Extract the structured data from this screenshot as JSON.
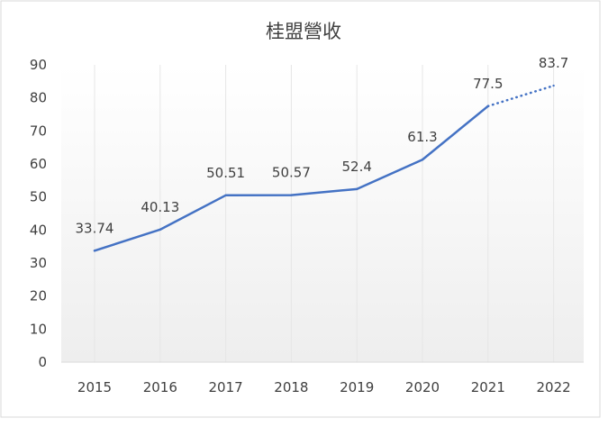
{
  "chart_data": {
    "type": "line",
    "title": "桂盟營收",
    "xlabel": "",
    "ylabel": "",
    "categories": [
      "2015",
      "2016",
      "2017",
      "2018",
      "2019",
      "2020",
      "2021",
      "2022"
    ],
    "ylim": [
      0,
      90
    ],
    "yticks": [
      0,
      10,
      20,
      30,
      40,
      50,
      60,
      70,
      80,
      90
    ],
    "series": [
      {
        "values": [
          33.74,
          40.13,
          50.51,
          50.57,
          52.4,
          61.3,
          77.5,
          83.7
        ],
        "data_labels": [
          "33.74",
          "40.13",
          "50.51",
          "50.57",
          "52.4",
          "61.3",
          "77.5",
          "83.7"
        ],
        "color": "#4472c4",
        "dotted_from_index": 6
      }
    ],
    "grid": "vertical",
    "legend": "none"
  }
}
